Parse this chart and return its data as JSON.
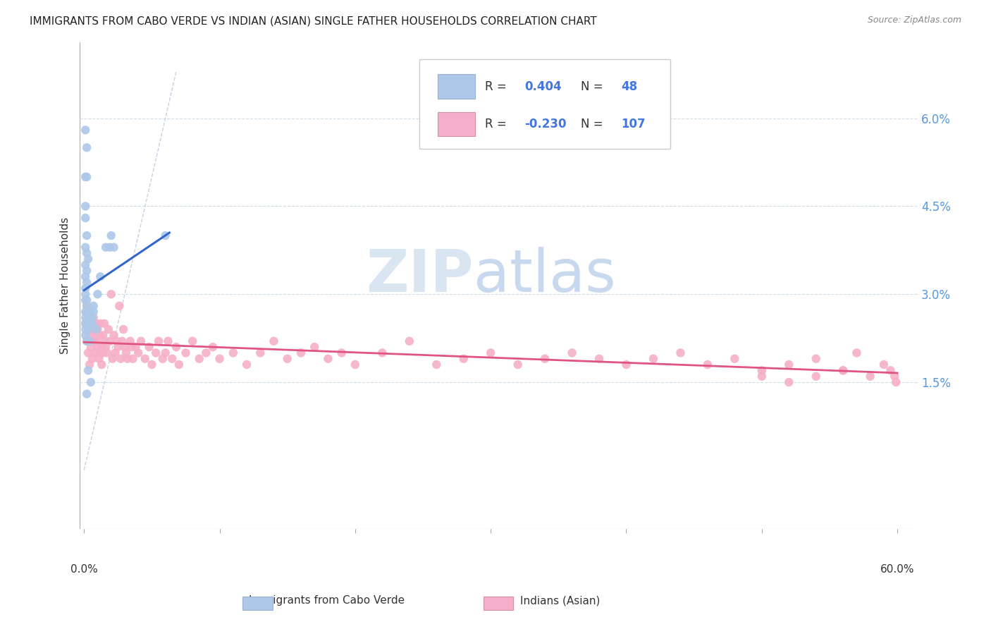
{
  "title": "IMMIGRANTS FROM CABO VERDE VS INDIAN (ASIAN) SINGLE FATHER HOUSEHOLDS CORRELATION CHART",
  "source": "Source: ZipAtlas.com",
  "ylabel": "Single Father Households",
  "ytick_labels": [
    "1.5%",
    "3.0%",
    "4.5%",
    "6.0%"
  ],
  "ytick_values": [
    0.015,
    0.03,
    0.045,
    0.06
  ],
  "xlim": [
    -0.003,
    0.615
  ],
  "ylim": [
    -0.01,
    0.073
  ],
  "legend_blue_r": "0.404",
  "legend_blue_n": "48",
  "legend_pink_r": "-0.230",
  "legend_pink_n": "107",
  "blue_color": "#adc8e8",
  "pink_color": "#f5afc8",
  "blue_line_color": "#3366cc",
  "pink_line_color": "#e05580",
  "diagonal_line_color": "#b8c8dc",
  "text_blue_color": "#4477dd",
  "text_pink_color": "#dd4477",
  "right_axis_color": "#5599dd",
  "watermark_zip_color": "#dae5f2",
  "watermark_atlas_color": "#c8d8ee",
  "blue_x": [
    0.001,
    0.002,
    0.001,
    0.002,
    0.001,
    0.001,
    0.002,
    0.001,
    0.002,
    0.003,
    0.001,
    0.002,
    0.001,
    0.002,
    0.001,
    0.001,
    0.001,
    0.002,
    0.002,
    0.001,
    0.002,
    0.001,
    0.003,
    0.002,
    0.001,
    0.002,
    0.001,
    0.003,
    0.001,
    0.002,
    0.004,
    0.005,
    0.006,
    0.007,
    0.009,
    0.01,
    0.012,
    0.016,
    0.019,
    0.02,
    0.022,
    0.06,
    0.004,
    0.006,
    0.007,
    0.003,
    0.005,
    0.002
  ],
  "blue_y": [
    0.058,
    0.055,
    0.05,
    0.05,
    0.045,
    0.043,
    0.04,
    0.038,
    0.037,
    0.036,
    0.035,
    0.034,
    0.033,
    0.032,
    0.031,
    0.03,
    0.029,
    0.029,
    0.028,
    0.027,
    0.027,
    0.026,
    0.026,
    0.025,
    0.025,
    0.025,
    0.024,
    0.024,
    0.023,
    0.022,
    0.026,
    0.027,
    0.026,
    0.028,
    0.024,
    0.03,
    0.033,
    0.038,
    0.038,
    0.04,
    0.038,
    0.04,
    0.022,
    0.025,
    0.027,
    0.017,
    0.015,
    0.013
  ],
  "pink_x": [
    0.001,
    0.002,
    0.002,
    0.003,
    0.003,
    0.004,
    0.004,
    0.005,
    0.005,
    0.006,
    0.006,
    0.007,
    0.007,
    0.008,
    0.008,
    0.009,
    0.009,
    0.01,
    0.01,
    0.011,
    0.011,
    0.012,
    0.012,
    0.013,
    0.013,
    0.014,
    0.014,
    0.015,
    0.015,
    0.016,
    0.017,
    0.018,
    0.019,
    0.02,
    0.021,
    0.022,
    0.023,
    0.024,
    0.025,
    0.026,
    0.027,
    0.028,
    0.029,
    0.03,
    0.031,
    0.032,
    0.034,
    0.035,
    0.036,
    0.038,
    0.04,
    0.042,
    0.045,
    0.048,
    0.05,
    0.053,
    0.055,
    0.058,
    0.06,
    0.062,
    0.065,
    0.068,
    0.07,
    0.075,
    0.08,
    0.085,
    0.09,
    0.095,
    0.1,
    0.11,
    0.12,
    0.13,
    0.14,
    0.15,
    0.16,
    0.17,
    0.18,
    0.19,
    0.2,
    0.22,
    0.24,
    0.26,
    0.28,
    0.3,
    0.32,
    0.34,
    0.36,
    0.38,
    0.4,
    0.42,
    0.44,
    0.46,
    0.48,
    0.5,
    0.52,
    0.54,
    0.56,
    0.57,
    0.58,
    0.59,
    0.595,
    0.598,
    0.599,
    0.56,
    0.54,
    0.52,
    0.5
  ],
  "pink_y": [
    0.025,
    0.022,
    0.028,
    0.02,
    0.025,
    0.018,
    0.023,
    0.021,
    0.026,
    0.019,
    0.024,
    0.022,
    0.026,
    0.023,
    0.02,
    0.025,
    0.022,
    0.021,
    0.024,
    0.019,
    0.023,
    0.02,
    0.025,
    0.021,
    0.018,
    0.023,
    0.02,
    0.022,
    0.025,
    0.021,
    0.02,
    0.024,
    0.022,
    0.03,
    0.019,
    0.023,
    0.02,
    0.022,
    0.021,
    0.028,
    0.019,
    0.022,
    0.024,
    0.021,
    0.02,
    0.019,
    0.022,
    0.021,
    0.019,
    0.021,
    0.02,
    0.022,
    0.019,
    0.021,
    0.018,
    0.02,
    0.022,
    0.019,
    0.02,
    0.022,
    0.019,
    0.021,
    0.018,
    0.02,
    0.022,
    0.019,
    0.02,
    0.021,
    0.019,
    0.02,
    0.018,
    0.02,
    0.022,
    0.019,
    0.02,
    0.021,
    0.019,
    0.02,
    0.018,
    0.02,
    0.022,
    0.018,
    0.019,
    0.02,
    0.018,
    0.019,
    0.02,
    0.019,
    0.018,
    0.019,
    0.02,
    0.018,
    0.019,
    0.017,
    0.018,
    0.019,
    0.017,
    0.02,
    0.016,
    0.018,
    0.017,
    0.016,
    0.015,
    0.017,
    0.016,
    0.015,
    0.016
  ]
}
